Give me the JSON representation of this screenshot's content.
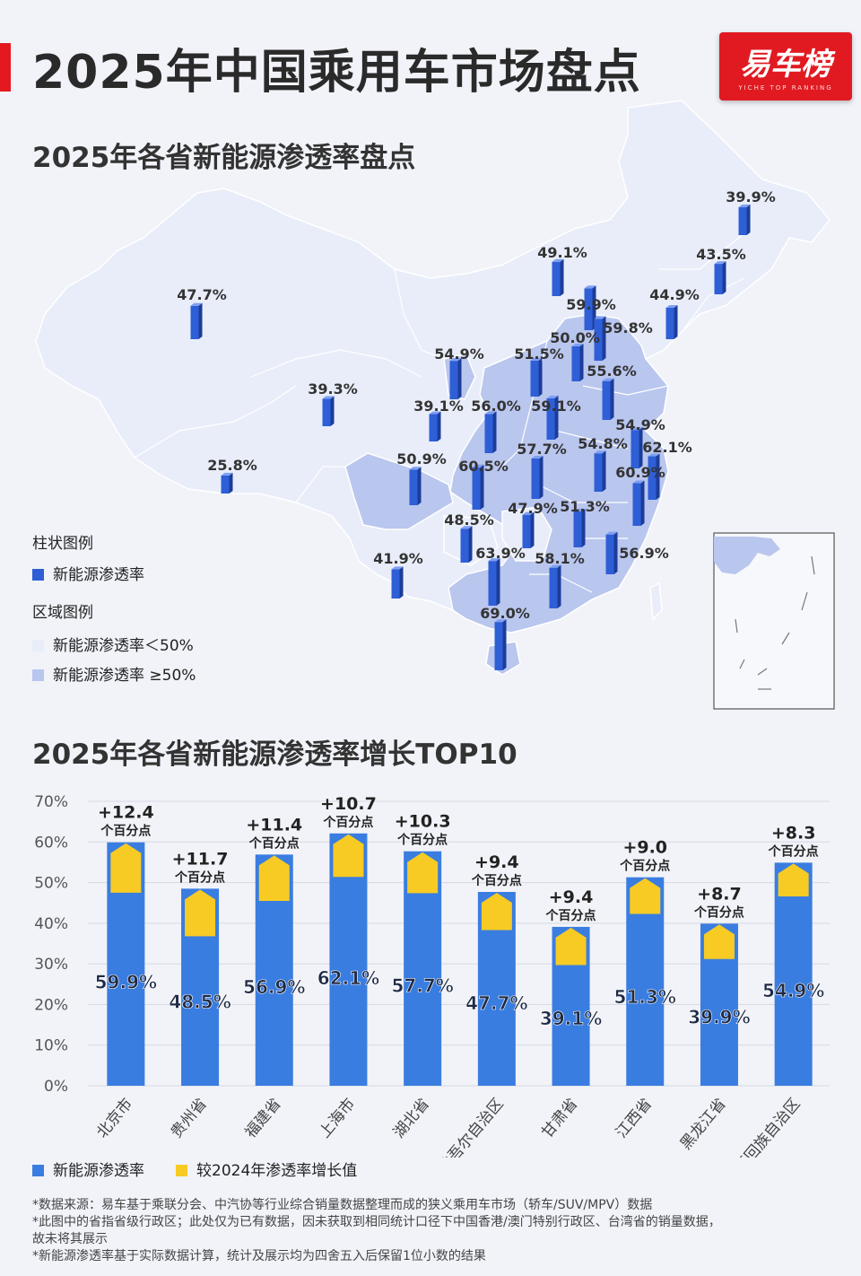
{
  "header": {
    "title": "2025年中国乘用车市场盘点",
    "brand_logo": "易车榜",
    "brand_sub": "YICHE TOP RANKING"
  },
  "map_section": {
    "title": "2025年各省新能源渗透率盘点",
    "bar_legend_title": "柱状图例",
    "bar_legend_item": "新能源渗透率",
    "region_legend_title": "区域图例",
    "region_low": "新能源渗透率＜50%",
    "region_high": "新能源渗透率 ≥50%",
    "colors": {
      "bar": "#2f5fd6",
      "region_low": "#e8edf9",
      "region_high": "#b9c6ee",
      "border": "#ffffff"
    },
    "province_values": [
      {
        "name": "黑龙江",
        "value": 39.9
      },
      {
        "name": "吉林",
        "value": 43.5
      },
      {
        "name": "辽宁",
        "value": 44.9
      },
      {
        "name": "内蒙古",
        "value": 49.1
      },
      {
        "name": "北京",
        "value": 59.9
      },
      {
        "name": "天津",
        "value": 59.8
      },
      {
        "name": "河北",
        "value": 50.0
      },
      {
        "name": "山西",
        "value": 51.5
      },
      {
        "name": "山东",
        "value": 55.6
      },
      {
        "name": "宁夏",
        "value": 54.9
      },
      {
        "name": "甘肃",
        "value": 39.1
      },
      {
        "name": "陕西",
        "value": 56.0
      },
      {
        "name": "河南",
        "value": 59.1
      },
      {
        "name": "江苏",
        "value": 54.9
      },
      {
        "name": "上海",
        "value": 62.1
      },
      {
        "name": "安徽",
        "value": 54.8
      },
      {
        "name": "湖北",
        "value": 57.7
      },
      {
        "name": "浙江",
        "value": 60.9
      },
      {
        "name": "重庆",
        "value": 60.5
      },
      {
        "name": "四川",
        "value": 50.9
      },
      {
        "name": "新疆",
        "value": 47.7
      },
      {
        "name": "青海",
        "value": 39.3
      },
      {
        "name": "西藏",
        "value": 25.8
      },
      {
        "name": "湖南",
        "value": 47.9
      },
      {
        "name": "江西",
        "value": 51.3
      },
      {
        "name": "贵州",
        "value": 48.5
      },
      {
        "name": "福建",
        "value": 56.9
      },
      {
        "name": "云南",
        "value": 41.9
      },
      {
        "name": "广西",
        "value": 63.9
      },
      {
        "name": "广东",
        "value": 58.1
      },
      {
        "name": "海南",
        "value": 69.0
      }
    ]
  },
  "chart_section": {
    "title": "2025年各省新能源渗透率增长TOP10",
    "legend_rate": "新能源渗透率",
    "legend_growth": "较2024年渗透率增长值",
    "growth_unit": "个百分点"
  },
  "chart_data": {
    "type": "bar",
    "title": "2025年各省新能源渗透率增长TOP10",
    "categories": [
      "北京市",
      "贵州省",
      "福建省",
      "上海市",
      "湖北省",
      "新疆维吾尔自治区",
      "甘肃省",
      "江西省",
      "黑龙江省",
      "宁夏回族自治区"
    ],
    "series": [
      {
        "name": "新能源渗透率",
        "values": [
          59.9,
          48.5,
          56.9,
          62.1,
          57.7,
          47.7,
          39.1,
          51.3,
          39.9,
          54.9
        ],
        "labels": [
          "59.9%",
          "48.5%",
          "56.9%",
          "62.1%",
          "57.7%",
          "47.7%",
          "39.1%",
          "51.3%",
          "39.9%",
          "54.9%"
        ]
      },
      {
        "name": "较2024年渗透率增长值",
        "values": [
          12.4,
          11.7,
          11.4,
          10.7,
          10.3,
          9.4,
          9.4,
          9.0,
          8.7,
          8.3
        ],
        "labels": [
          "+12.4",
          "+11.7",
          "+11.4",
          "+10.7",
          "+10.3",
          "+9.4",
          "+9.4",
          "+9.0",
          "+8.7",
          "+8.3"
        ]
      }
    ],
    "yticks": [
      "0%",
      "10%",
      "20%",
      "30%",
      "40%",
      "50%",
      "60%",
      "70%"
    ],
    "ylim": [
      0,
      70
    ],
    "grid": true,
    "colors": {
      "rate": "#3a7de0",
      "growth": "#f7cb24"
    }
  },
  "notes": [
    "*数据来源：易车基于乘联分会、中汽协等行业综合销量数据整理而成的狭义乘用车市场（轿车/SUV/MPV）数据",
    "*此图中的省指省级行政区；此处仅为已有数据，因未获取到相同统计口径下中国香港/澳门特别行政区、台湾省的销量数据，",
    "故未将其展示",
    "*新能源渗透率基于实际数据计算，统计及展示均为四舍五入后保留1位小数的结果"
  ]
}
